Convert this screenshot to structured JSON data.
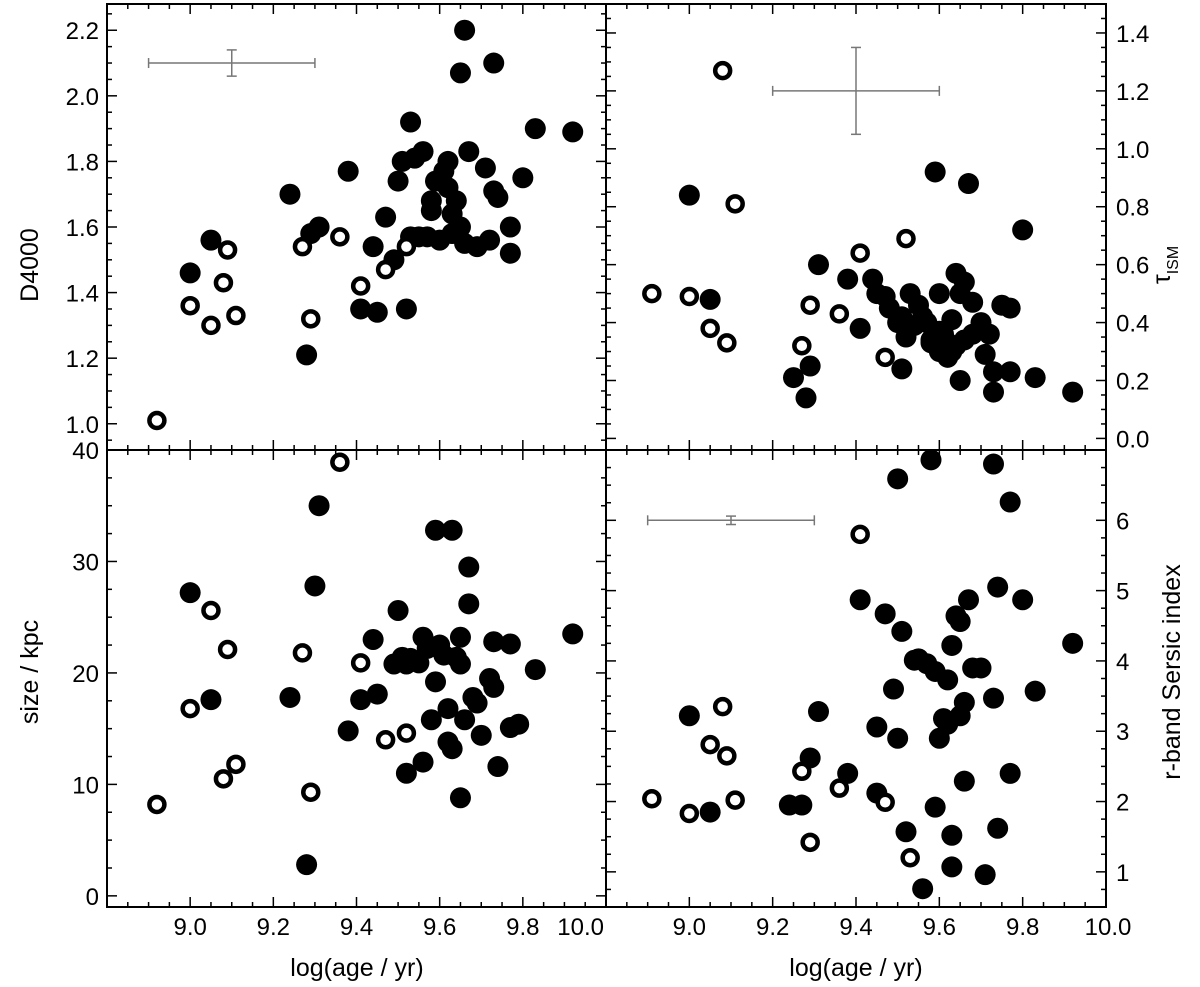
{
  "figure": {
    "axis_color": "#000000",
    "errorbar_color": "#777777",
    "marker_color": "#000000"
  },
  "chart_data": [
    {
      "id": "top-left",
      "type": "scatter",
      "xlabel": "",
      "ylabel": "D4000",
      "ylabel_side": "left",
      "xlim": [
        8.8,
        10.0
      ],
      "ylim": [
        0.92,
        2.28
      ],
      "yticks": [
        "1.0",
        "1.2",
        "1.4",
        "1.6",
        "1.8",
        "2.0",
        "2.2"
      ],
      "xticks": [],
      "errorbar": {
        "x": 9.1,
        "y": 2.1,
        "xerr": 0.2,
        "yerr": 0.04
      },
      "filled": [
        [
          9.0,
          1.46
        ],
        [
          9.05,
          1.56
        ],
        [
          9.24,
          1.7
        ],
        [
          9.28,
          1.21
        ],
        [
          9.29,
          1.58
        ],
        [
          9.31,
          1.6
        ],
        [
          9.38,
          1.77
        ],
        [
          9.41,
          1.35
        ],
        [
          9.44,
          1.54
        ],
        [
          9.45,
          1.34
        ],
        [
          9.47,
          1.63
        ],
        [
          9.5,
          1.74
        ],
        [
          9.51,
          1.8
        ],
        [
          9.52,
          1.35
        ],
        [
          9.53,
          1.92
        ],
        [
          9.53,
          1.57
        ],
        [
          9.54,
          1.81
        ],
        [
          9.55,
          1.57
        ],
        [
          9.56,
          1.83
        ],
        [
          9.58,
          1.65
        ],
        [
          9.58,
          1.68
        ],
        [
          9.59,
          1.74
        ],
        [
          9.6,
          1.56
        ],
        [
          9.61,
          1.77
        ],
        [
          9.62,
          1.72
        ],
        [
          9.62,
          1.8
        ],
        [
          9.63,
          1.58
        ],
        [
          9.63,
          1.64
        ],
        [
          9.64,
          1.68
        ],
        [
          9.65,
          1.6
        ],
        [
          9.65,
          2.07
        ],
        [
          9.66,
          2.2
        ],
        [
          9.66,
          1.55
        ],
        [
          9.67,
          1.83
        ],
        [
          9.69,
          1.54
        ],
        [
          9.71,
          1.78
        ],
        [
          9.72,
          1.56
        ],
        [
          9.73,
          1.71
        ],
        [
          9.73,
          2.1
        ],
        [
          9.74,
          1.69
        ],
        [
          9.77,
          1.52
        ],
        [
          9.77,
          1.6
        ],
        [
          9.8,
          1.75
        ],
        [
          9.83,
          1.9
        ],
        [
          9.92,
          1.89
        ],
        [
          9.49,
          1.5
        ],
        [
          9.57,
          1.57
        ]
      ],
      "open": [
        [
          8.92,
          1.01
        ],
        [
          9.0,
          1.36
        ],
        [
          9.05,
          1.3
        ],
        [
          9.08,
          1.43
        ],
        [
          9.09,
          1.53
        ],
        [
          9.11,
          1.33
        ],
        [
          9.27,
          1.54
        ],
        [
          9.29,
          1.32
        ],
        [
          9.36,
          1.57
        ],
        [
          9.41,
          1.42
        ],
        [
          9.47,
          1.47
        ],
        [
          9.52,
          1.54
        ]
      ]
    },
    {
      "id": "top-right",
      "type": "scatter",
      "xlabel": "",
      "ylabel": "τISM",
      "ylabel_main": "τ",
      "ylabel_sub": "ISM",
      "ylabel_side": "right",
      "xlim": [
        8.8,
        10.0
      ],
      "ylim": [
        -0.04,
        1.5
      ],
      "yticks": [
        "0.0",
        "0.2",
        "0.4",
        "0.6",
        "0.8",
        "1.0",
        "1.2",
        "1.4"
      ],
      "xticks": [],
      "errorbar": {
        "x": 9.4,
        "y": 1.2,
        "xerr": 0.2,
        "yerr": 0.15
      },
      "filled": [
        [
          9.0,
          0.84
        ],
        [
          9.05,
          0.48
        ],
        [
          9.25,
          0.21
        ],
        [
          9.28,
          0.14
        ],
        [
          9.29,
          0.25
        ],
        [
          9.31,
          0.6
        ],
        [
          9.38,
          0.55
        ],
        [
          9.41,
          0.38
        ],
        [
          9.44,
          0.55
        ],
        [
          9.45,
          0.5
        ],
        [
          9.47,
          0.49
        ],
        [
          9.48,
          0.45
        ],
        [
          9.5,
          0.4
        ],
        [
          9.51,
          0.42
        ],
        [
          9.51,
          0.24
        ],
        [
          9.52,
          0.35
        ],
        [
          9.53,
          0.5
        ],
        [
          9.54,
          0.39
        ],
        [
          9.55,
          0.46
        ],
        [
          9.56,
          0.42
        ],
        [
          9.57,
          0.4
        ],
        [
          9.58,
          0.34
        ],
        [
          9.59,
          0.92
        ],
        [
          9.6,
          0.3
        ],
        [
          9.6,
          0.5
        ],
        [
          9.61,
          0.36
        ],
        [
          9.62,
          0.33
        ],
        [
          9.63,
          0.41
        ],
        [
          9.63,
          0.3
        ],
        [
          9.64,
          0.32
        ],
        [
          9.64,
          0.57
        ],
        [
          9.65,
          0.5
        ],
        [
          9.65,
          0.2
        ],
        [
          9.66,
          0.54
        ],
        [
          9.66,
          0.34
        ],
        [
          9.67,
          0.88
        ],
        [
          9.68,
          0.47
        ],
        [
          9.7,
          0.4
        ],
        [
          9.71,
          0.29
        ],
        [
          9.72,
          0.36
        ],
        [
          9.73,
          0.23
        ],
        [
          9.73,
          0.16
        ],
        [
          9.75,
          0.46
        ],
        [
          9.77,
          0.45
        ],
        [
          9.77,
          0.23
        ],
        [
          9.8,
          0.72
        ],
        [
          9.83,
          0.21
        ],
        [
          9.92,
          0.16
        ],
        [
          9.58,
          0.33
        ],
        [
          9.6,
          0.37
        ],
        [
          9.62,
          0.28
        ],
        [
          9.68,
          0.36
        ]
      ],
      "open": [
        [
          8.91,
          0.5
        ],
        [
          9.0,
          0.49
        ],
        [
          9.05,
          0.38
        ],
        [
          9.08,
          1.27
        ],
        [
          9.09,
          0.33
        ],
        [
          9.11,
          0.81
        ],
        [
          9.27,
          0.32
        ],
        [
          9.29,
          0.46
        ],
        [
          9.36,
          0.43
        ],
        [
          9.41,
          0.64
        ],
        [
          9.47,
          0.28
        ],
        [
          9.52,
          0.69
        ]
      ]
    },
    {
      "id": "bottom-left",
      "type": "scatter",
      "xlabel": "log(age / yr)",
      "ylabel": "size / kpc",
      "ylabel_side": "left",
      "xlim": [
        8.8,
        10.0
      ],
      "ylim": [
        -1,
        40
      ],
      "yticks": [
        "0",
        "10",
        "20",
        "30",
        "40"
      ],
      "xticks": [
        "9.0",
        "9.2",
        "9.4",
        "9.6",
        "9.8",
        "10.0"
      ],
      "filled": [
        [
          9.0,
          27.2
        ],
        [
          9.05,
          17.6
        ],
        [
          9.24,
          17.8
        ],
        [
          9.28,
          2.8
        ],
        [
          9.3,
          27.8
        ],
        [
          9.31,
          35
        ],
        [
          9.38,
          14.8
        ],
        [
          9.41,
          17.6
        ],
        [
          9.44,
          23
        ],
        [
          9.45,
          18.1
        ],
        [
          9.49,
          20.8
        ],
        [
          9.5,
          25.6
        ],
        [
          9.51,
          21.4
        ],
        [
          9.52,
          20.8
        ],
        [
          9.52,
          11
        ],
        [
          9.53,
          21.3
        ],
        [
          9.56,
          23.2
        ],
        [
          9.56,
          12
        ],
        [
          9.57,
          22.2
        ],
        [
          9.58,
          15.8
        ],
        [
          9.59,
          32.8
        ],
        [
          9.59,
          19.2
        ],
        [
          9.6,
          22.5
        ],
        [
          9.61,
          21.6
        ],
        [
          9.62,
          13.8
        ],
        [
          9.62,
          16.8
        ],
        [
          9.63,
          32.8
        ],
        [
          9.63,
          13.2
        ],
        [
          9.64,
          21.4
        ],
        [
          9.65,
          23.2
        ],
        [
          9.65,
          8.8
        ],
        [
          9.65,
          20.8
        ],
        [
          9.66,
          15.8
        ],
        [
          9.67,
          29.5
        ],
        [
          9.67,
          26.2
        ],
        [
          9.68,
          17.8
        ],
        [
          9.7,
          14.4
        ],
        [
          9.72,
          19.5
        ],
        [
          9.73,
          22.8
        ],
        [
          9.73,
          18.7
        ],
        [
          9.74,
          11.6
        ],
        [
          9.77,
          22.6
        ],
        [
          9.77,
          15.1
        ],
        [
          9.79,
          15.4
        ],
        [
          9.83,
          20.3
        ],
        [
          9.92,
          23.5
        ],
        [
          9.69,
          17.3
        ],
        [
          9.55,
          20.9
        ]
      ],
      "open": [
        [
          8.92,
          8.2
        ],
        [
          9.0,
          16.8
        ],
        [
          9.05,
          25.6
        ],
        [
          9.08,
          10.5
        ],
        [
          9.09,
          22.1
        ],
        [
          9.11,
          11.8
        ],
        [
          9.27,
          21.8
        ],
        [
          9.29,
          9.3
        ],
        [
          9.36,
          38.9
        ],
        [
          9.41,
          20.9
        ],
        [
          9.47,
          14
        ],
        [
          9.52,
          14.6
        ]
      ]
    },
    {
      "id": "bottom-right",
      "type": "scatter",
      "xlabel": "log(age / yr)",
      "ylabel": "r-band Sersic index",
      "ylabel_side": "right",
      "xlim": [
        8.8,
        10.0
      ],
      "ylim": [
        0.5,
        7.0
      ],
      "yticks": [
        "1",
        "2",
        "3",
        "4",
        "5",
        "6"
      ],
      "xticks": [
        "9.0",
        "9.2",
        "9.4",
        "9.6",
        "9.8",
        "10.0"
      ],
      "errorbar": {
        "x": 9.1,
        "y": 6.0,
        "xerr": 0.2,
        "yerr": 0.06
      },
      "filled": [
        [
          9.0,
          3.22
        ],
        [
          9.05,
          1.85
        ],
        [
          9.24,
          1.95
        ],
        [
          9.27,
          1.95
        ],
        [
          9.29,
          2.62
        ],
        [
          9.31,
          3.28
        ],
        [
          9.38,
          2.4
        ],
        [
          9.41,
          4.87
        ],
        [
          9.45,
          2.12
        ],
        [
          9.45,
          3.06
        ],
        [
          9.47,
          4.67
        ],
        [
          9.49,
          3.6
        ],
        [
          9.5,
          6.59
        ],
        [
          9.5,
          2.9
        ],
        [
          9.51,
          4.42
        ],
        [
          9.52,
          1.57
        ],
        [
          9.54,
          4.01
        ],
        [
          9.55,
          4.03
        ],
        [
          9.56,
          0.76
        ],
        [
          9.57,
          3.96
        ],
        [
          9.58,
          6.86
        ],
        [
          9.59,
          3.85
        ],
        [
          9.59,
          1.92
        ],
        [
          9.6,
          2.9
        ],
        [
          9.62,
          3.73
        ],
        [
          9.62,
          3.1
        ],
        [
          9.63,
          4.22
        ],
        [
          9.63,
          1.52
        ],
        [
          9.63,
          1.07
        ],
        [
          9.65,
          4.56
        ],
        [
          9.65,
          3.22
        ],
        [
          9.66,
          2.29
        ],
        [
          9.66,
          3.41
        ],
        [
          9.67,
          4.87
        ],
        [
          9.68,
          3.9
        ],
        [
          9.7,
          3.9
        ],
        [
          9.71,
          0.96
        ],
        [
          9.73,
          6.8
        ],
        [
          9.73,
          3.47
        ],
        [
          9.74,
          1.62
        ],
        [
          9.74,
          5.05
        ],
        [
          9.77,
          6.26
        ],
        [
          9.77,
          2.4
        ],
        [
          9.8,
          4.87
        ],
        [
          9.83,
          3.57
        ],
        [
          9.92,
          4.25
        ],
        [
          9.64,
          4.64
        ],
        [
          9.61,
          3.18
        ]
      ],
      "open": [
        [
          8.91,
          2.04
        ],
        [
          9.0,
          1.83
        ],
        [
          9.05,
          2.81
        ],
        [
          9.08,
          3.35
        ],
        [
          9.09,
          2.65
        ],
        [
          9.11,
          2.02
        ],
        [
          9.27,
          2.43
        ],
        [
          9.29,
          1.42
        ],
        [
          9.36,
          2.19
        ],
        [
          9.41,
          5.8
        ],
        [
          9.47,
          1.99
        ],
        [
          9.53,
          1.2
        ]
      ]
    }
  ]
}
